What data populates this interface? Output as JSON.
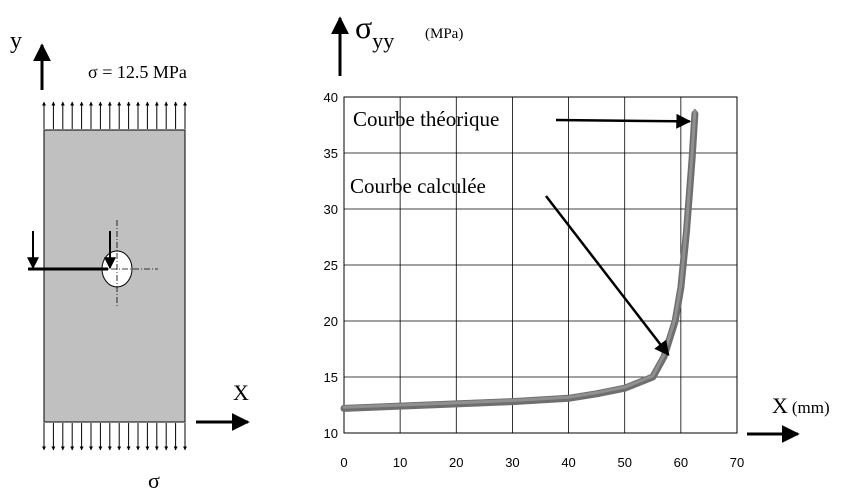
{
  "plate": {
    "y_axis_label": "y",
    "x_axis_label": "X",
    "stress_label": "σ = 12.5 MPa",
    "bottom_stress_label": "σ"
  },
  "chart_data": {
    "type": "line",
    "ylabel_symbol": "σ",
    "ylabel_sub": "yy",
    "ylabel_unit": "(MPa)",
    "xlabel": "X",
    "xlabel_unit": "(mm)",
    "xlim": [
      0,
      70
    ],
    "ylim": [
      10,
      40
    ],
    "xticks": [
      0,
      10,
      20,
      30,
      40,
      50,
      60,
      70
    ],
    "yticks": [
      10,
      15,
      20,
      25,
      30,
      35,
      40
    ],
    "grid": true,
    "series": [
      {
        "name": "Courbe théorique",
        "x": [
          0,
          10,
          20,
          30,
          40,
          45,
          50,
          55,
          57,
          59,
          60,
          61,
          62,
          62.5
        ],
        "y": [
          12.2,
          12.4,
          12.6,
          12.8,
          13.1,
          13.5,
          14.0,
          15.0,
          16.8,
          20.0,
          23.0,
          28.0,
          34.5,
          38.5
        ]
      },
      {
        "name": "Courbe calculée",
        "x": [
          0,
          10,
          20,
          30,
          40,
          45,
          50,
          55,
          57,
          59,
          60,
          61,
          62,
          62.5
        ],
        "y": [
          12.3,
          12.5,
          12.7,
          12.9,
          13.2,
          13.6,
          14.1,
          15.1,
          17.0,
          20.3,
          23.3,
          28.5,
          35.0,
          38.8
        ]
      }
    ],
    "annotations": [
      {
        "text": "Courbe théorique",
        "points_to": [
          62.3,
          38.0
        ]
      },
      {
        "text": "Courbe calculée",
        "points_to": [
          58.5,
          16.8
        ]
      }
    ]
  }
}
